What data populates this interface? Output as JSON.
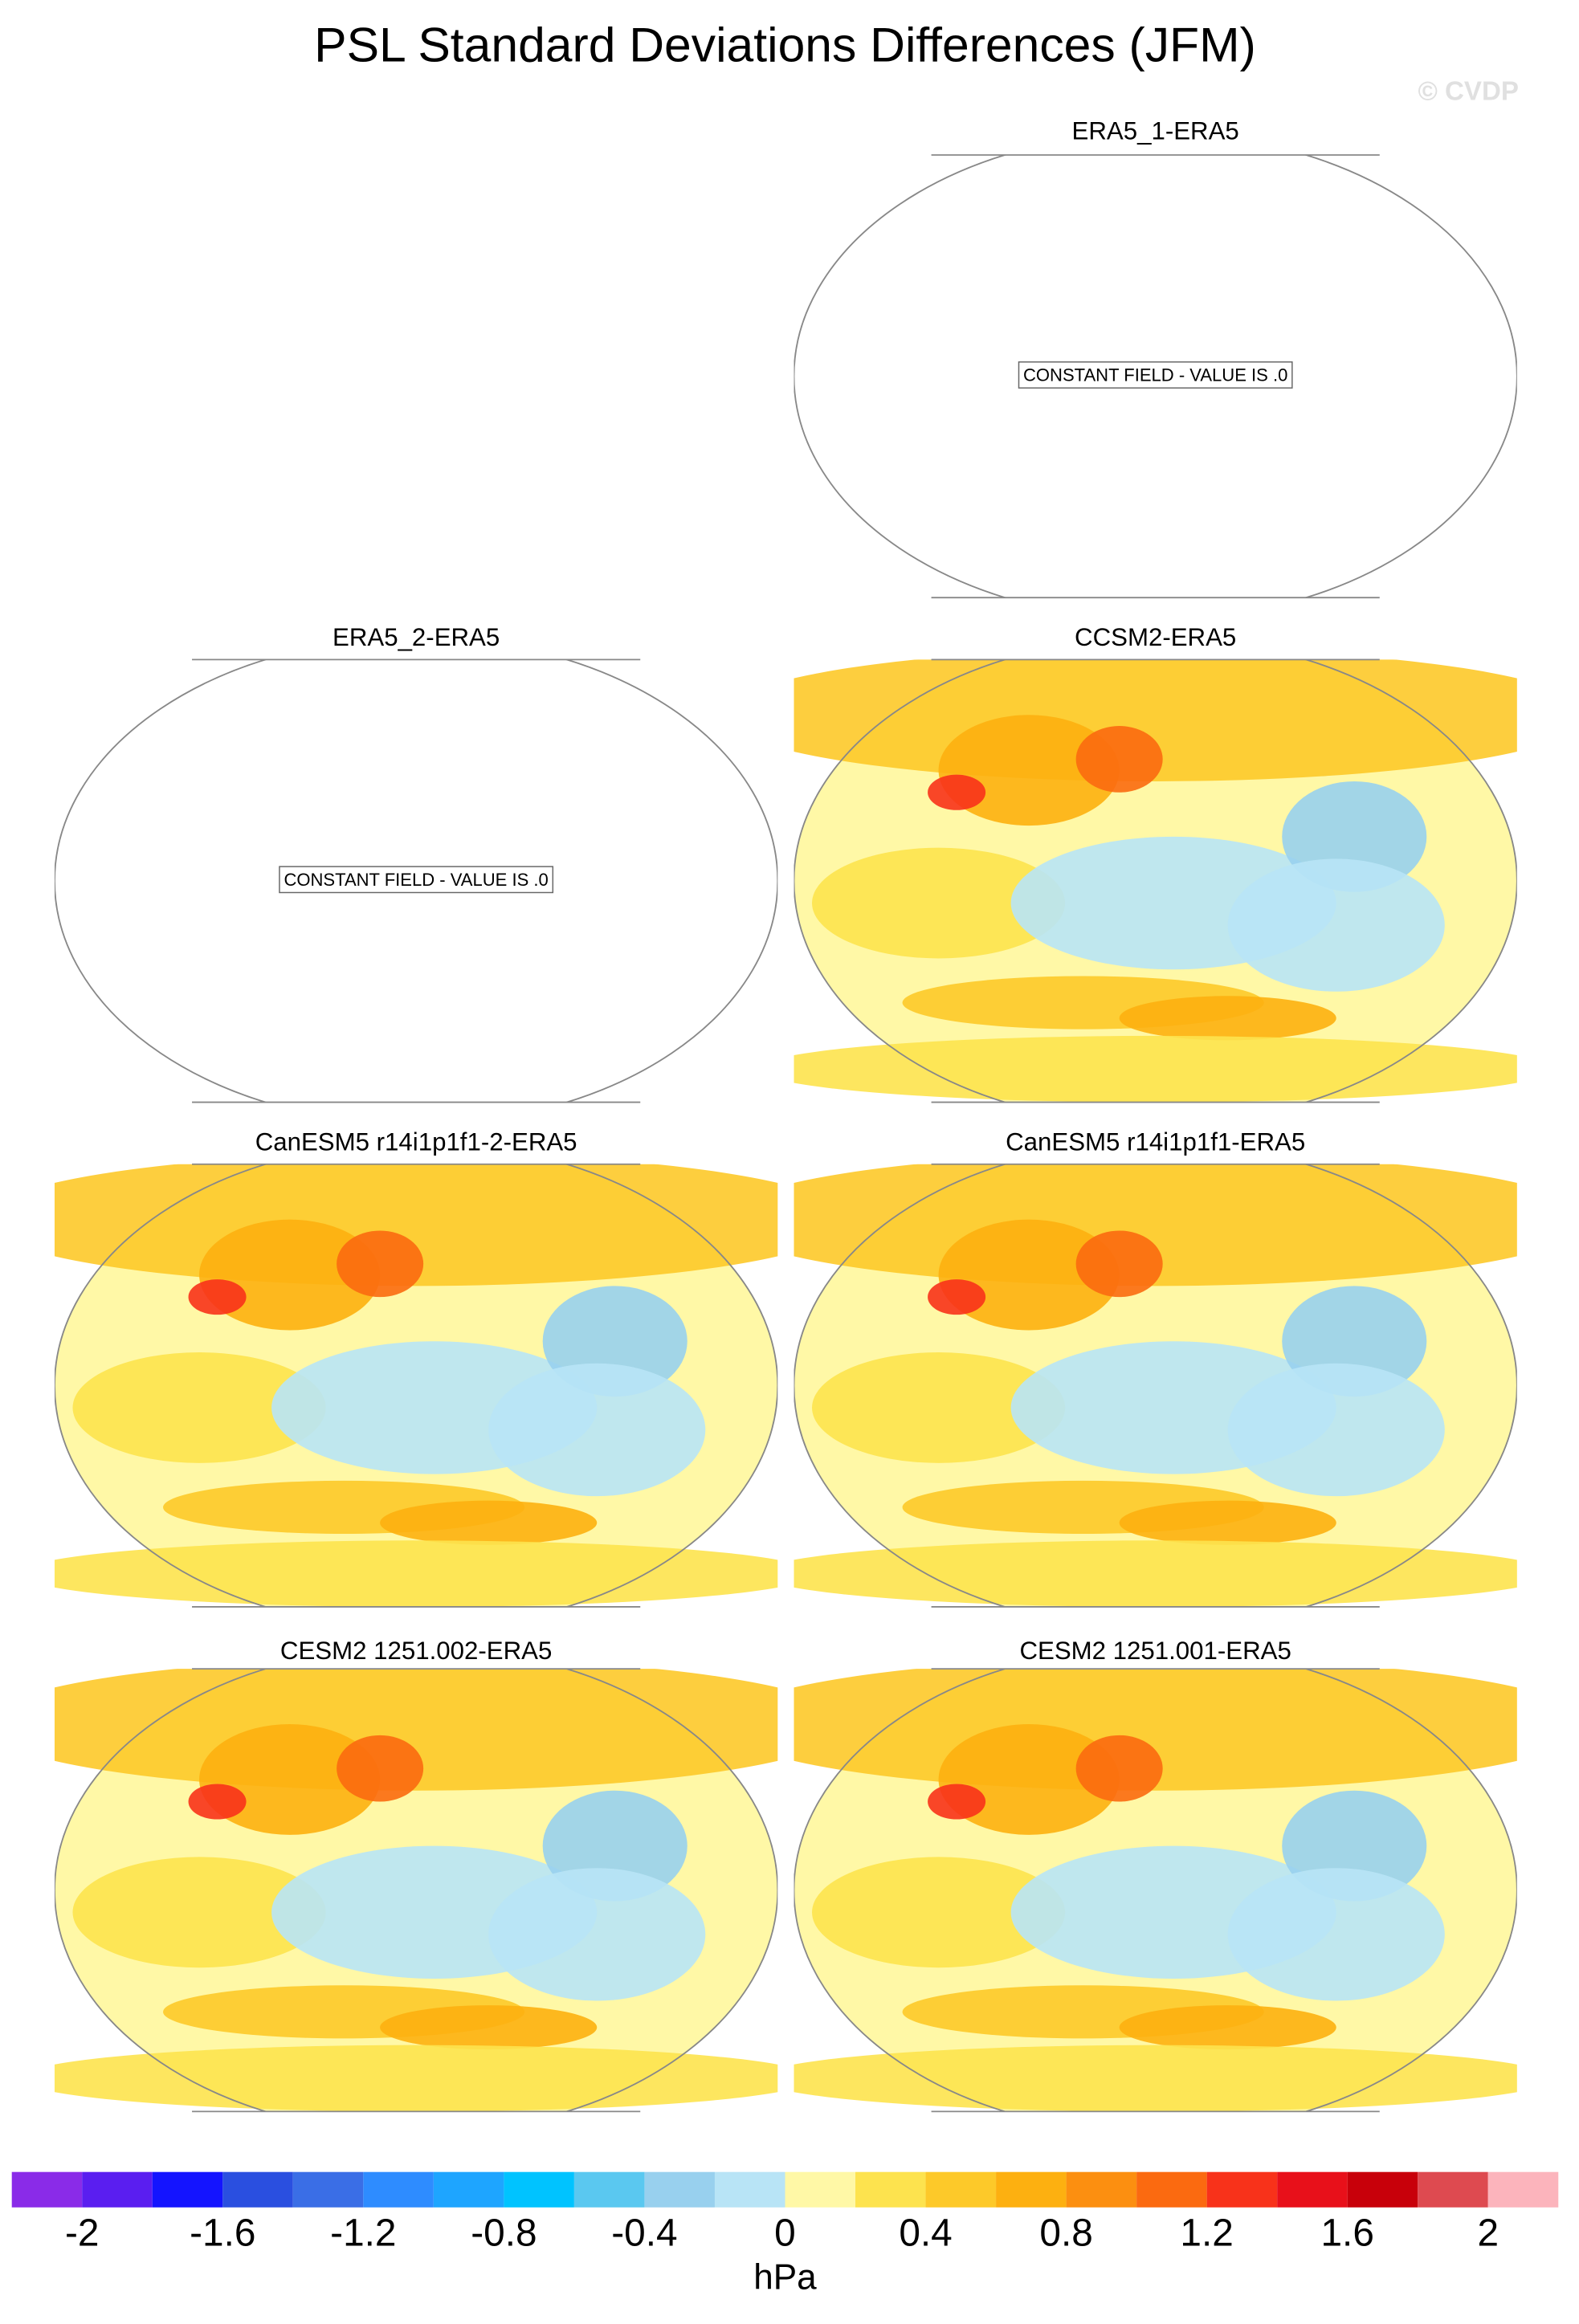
{
  "title": "PSL Standard Deviations Differences (JFM)",
  "watermark": "© CVDP",
  "panels": [
    {
      "title": "ERA5_1-ERA5",
      "note": "CONSTANT FIELD - VALUE IS .0"
    },
    {
      "title": "ERA5_2-ERA5",
      "note": "CONSTANT FIELD - VALUE IS .0"
    },
    {
      "title": "CCSM2-ERA5"
    },
    {
      "title": "CanESM5 r14i1p1f1-2-ERA5"
    },
    {
      "title": "CanESM5 r14i1p1f1-ERA5"
    },
    {
      "title": "CESM2 1251.002-ERA5"
    },
    {
      "title": "CESM2 1251.001-ERA5"
    }
  ],
  "colorbar": {
    "levels": [
      -2,
      -1.8,
      -1.6,
      -1.4,
      -1.2,
      -1,
      -0.8,
      -0.6,
      -0.4,
      -0.2,
      0,
      0.2,
      0.4,
      0.6,
      0.8,
      1,
      1.2,
      1.4,
      1.6,
      1.8,
      2
    ],
    "colors": [
      "#8a2be8",
      "#5a1ef0",
      "#1414ff",
      "#2a4fe0",
      "#3a6ee6",
      "#2e8cff",
      "#1ea5ff",
      "#00c3ff",
      "#5ac8f0",
      "#98d0ee",
      "#b8e4f6",
      "#fff8a6",
      "#fde34e",
      "#fdc929",
      "#fdb010",
      "#fc8f10",
      "#fb6a10",
      "#f8321a",
      "#e8101a",
      "#c8000a",
      "#de4a50",
      "#fcb4bc"
    ],
    "ticks": [
      -2,
      -1.6,
      -1.2,
      -0.8,
      -0.4,
      0,
      0.4,
      0.8,
      1.2,
      1.6,
      2
    ],
    "label": "hPa"
  }
}
